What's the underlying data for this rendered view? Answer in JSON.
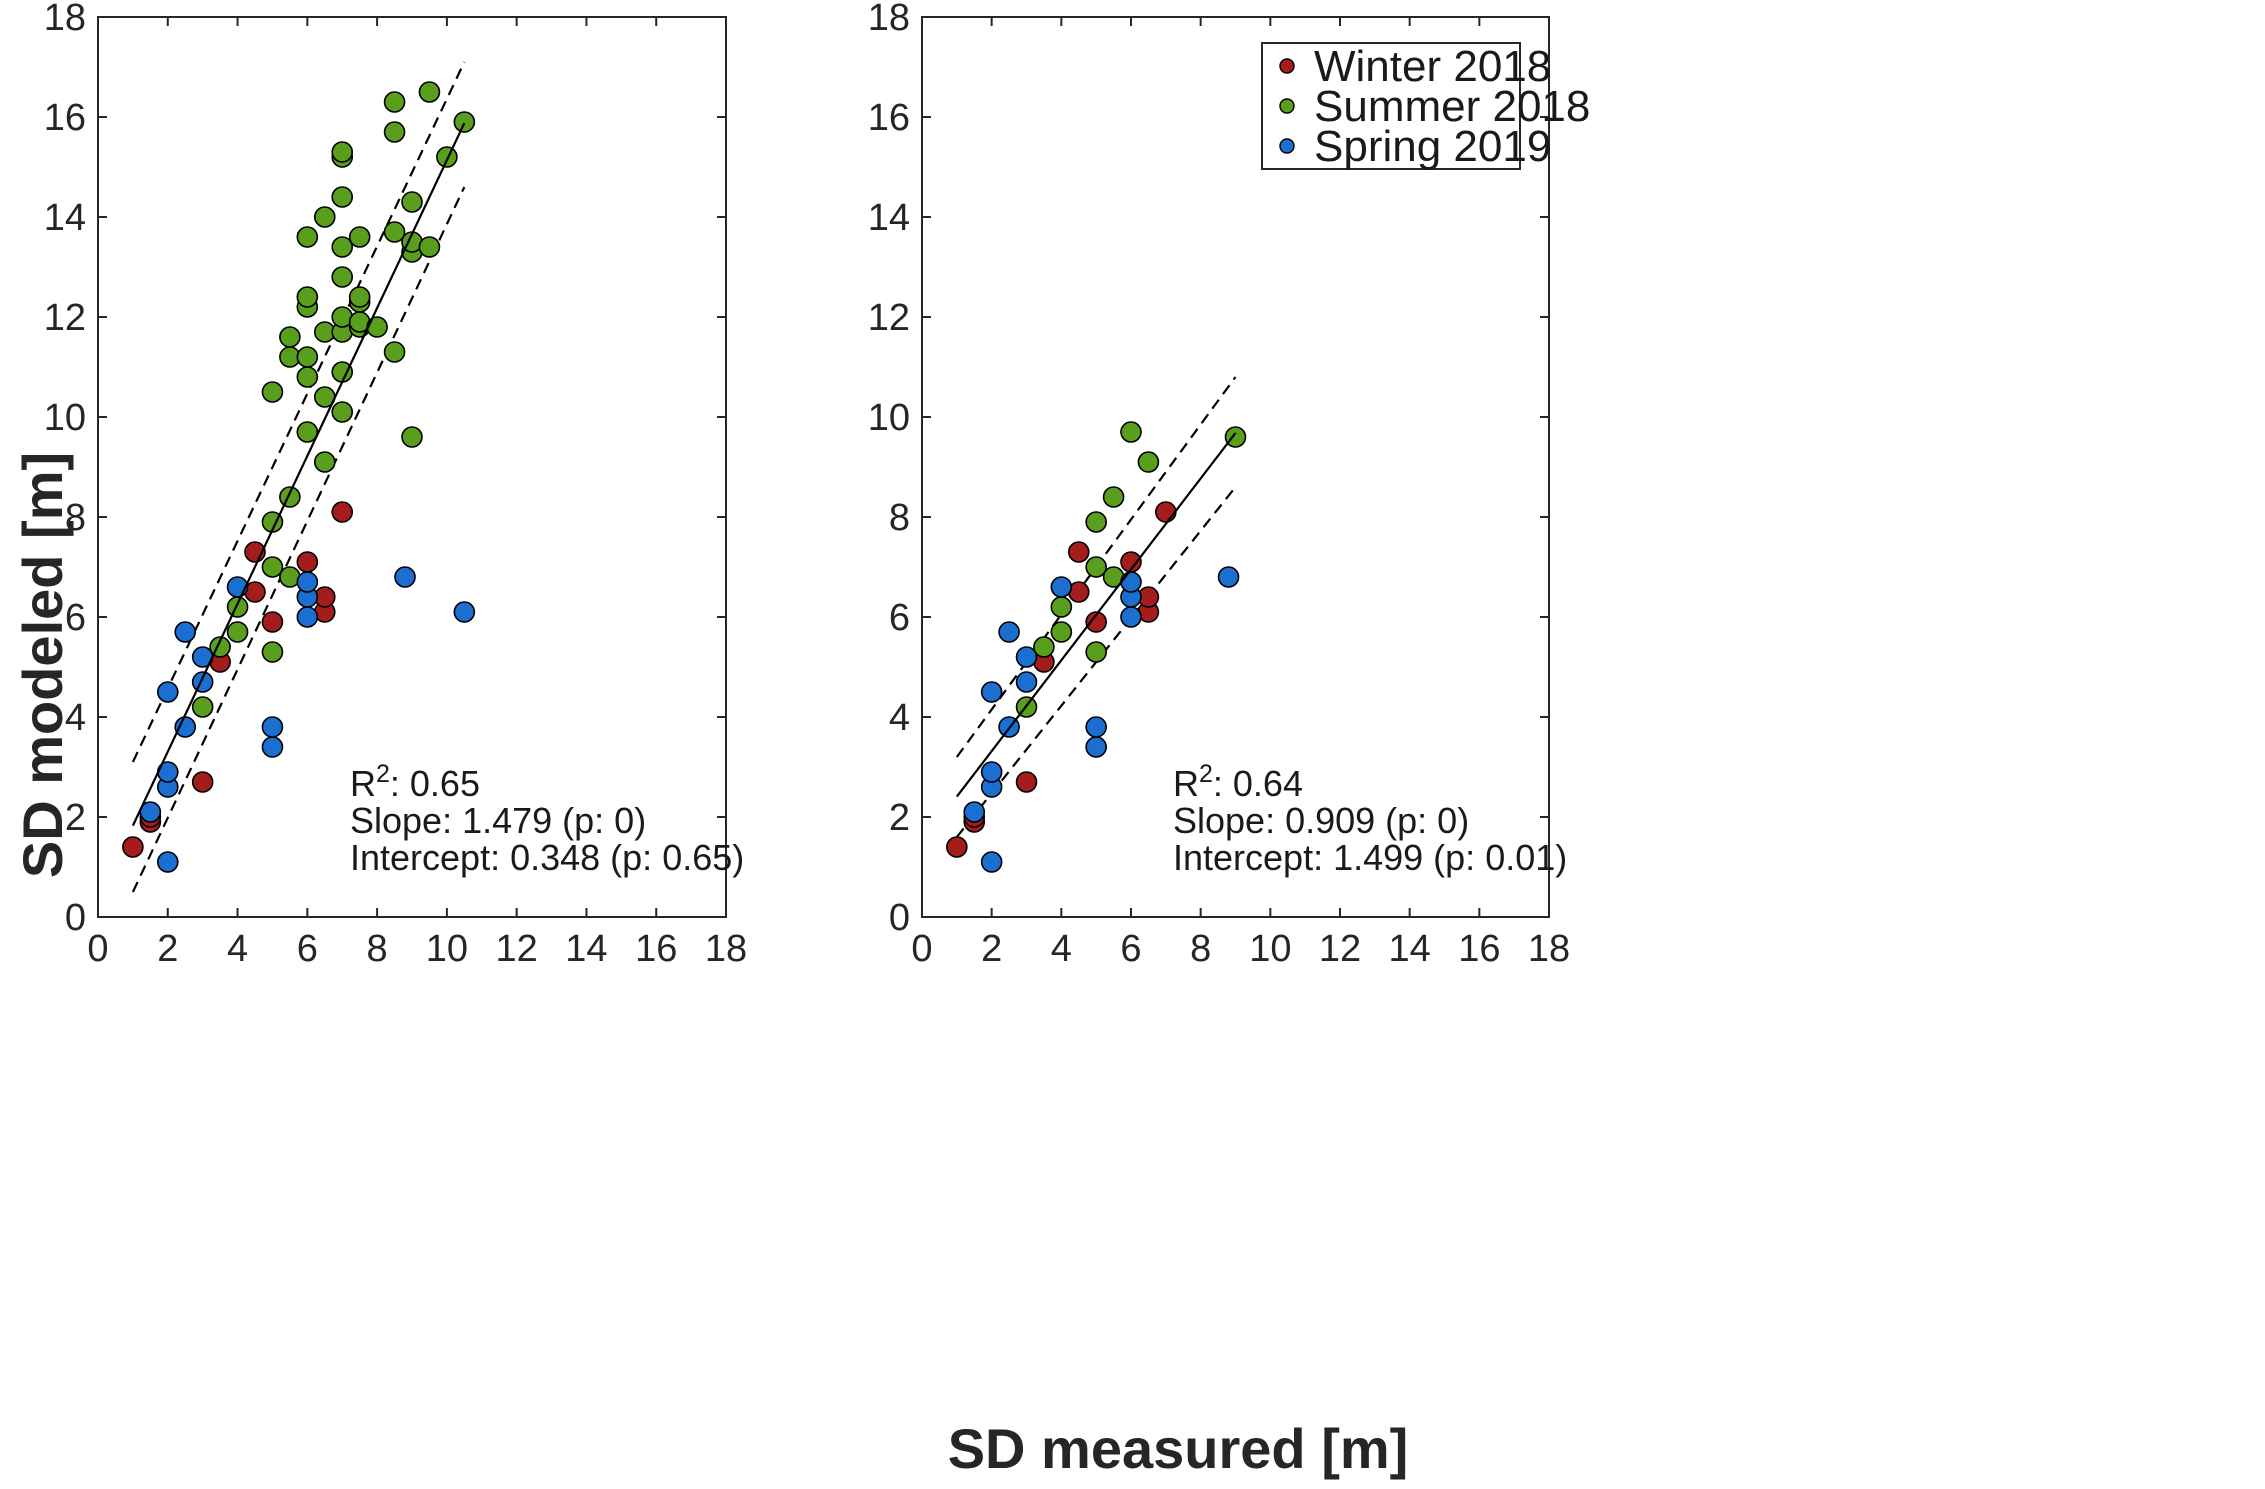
{
  "figure": {
    "xlabel": "SD measured [m]",
    "ylabel": "SD modeled [m]"
  },
  "legend": {
    "placement": "top-right",
    "entries": [
      {
        "name": "Winter 2018",
        "color": "#a51c1c"
      },
      {
        "name": "Summer 2018",
        "color": "#5a9e1e"
      },
      {
        "name": "Spring 2019",
        "color": "#1b6fd0"
      }
    ]
  },
  "chart_data": [
    {
      "type": "scatter",
      "panel": "left",
      "xlim": [
        0,
        18
      ],
      "ylim": [
        0,
        18
      ],
      "xticks": [
        0,
        2,
        4,
        6,
        8,
        10,
        12,
        14,
        16,
        18
      ],
      "yticks": [
        0,
        2,
        4,
        6,
        8,
        10,
        12,
        14,
        16,
        18
      ],
      "xlabel": "SD measured [m]",
      "ylabel": "SD modeled [m]",
      "stats": {
        "r2_label": "R",
        "r2_sup": "2",
        "r2_value": ": 0.65",
        "slope": "Slope: 1.479  (p: 0)",
        "intercept": "Intercept: 0.348  (p: 0.65)"
      },
      "fit": {
        "x_range": [
          1,
          10.5
        ],
        "slope": 1.479,
        "intercept": 0.348
      },
      "ci_lines": [
        {
          "x": [
            1,
            10.5
          ],
          "y": [
            3.1,
            17.1
          ]
        },
        {
          "x": [
            1,
            10.5
          ],
          "y": [
            0.5,
            14.6
          ]
        }
      ],
      "series": [
        {
          "name": "Winter 2018",
          "color": "#a51c1c",
          "points": [
            [
              1,
              1.4
            ],
            [
              1.5,
              1.9
            ],
            [
              1.5,
              2.0
            ],
            [
              3,
              2.7
            ],
            [
              3.5,
              5.1
            ],
            [
              4.5,
              6.5
            ],
            [
              4.5,
              7.3
            ],
            [
              5,
              5.9
            ],
            [
              6,
              7.1
            ],
            [
              6.5,
              6.1
            ],
            [
              6.5,
              6.4
            ],
            [
              7,
              8.1
            ]
          ]
        },
        {
          "name": "Summer 2018",
          "color": "#5a9e1e",
          "points": [
            [
              3,
              4.2
            ],
            [
              3.5,
              5.4
            ],
            [
              4,
              5.7
            ],
            [
              4,
              6.2
            ],
            [
              5,
              5.3
            ],
            [
              5,
              7.0
            ],
            [
              5,
              7.9
            ],
            [
              5,
              10.5
            ],
            [
              5.5,
              6.8
            ],
            [
              5.5,
              8.4
            ],
            [
              5.5,
              11.2
            ],
            [
              5.5,
              11.6
            ],
            [
              6,
              9.7
            ],
            [
              6,
              10.8
            ],
            [
              6,
              11.2
            ],
            [
              6,
              12.2
            ],
            [
              6,
              12.4
            ],
            [
              6,
              13.6
            ],
            [
              6.5,
              9.1
            ],
            [
              6.5,
              10.4
            ],
            [
              6.5,
              11.7
            ],
            [
              6.5,
              14.0
            ],
            [
              7,
              10.1
            ],
            [
              7,
              10.9
            ],
            [
              7,
              11.7
            ],
            [
              7,
              12.0
            ],
            [
              7,
              12.8
            ],
            [
              7,
              13.4
            ],
            [
              7,
              14.4
            ],
            [
              7,
              15.2
            ],
            [
              7,
              15.3
            ],
            [
              7.5,
              11.8
            ],
            [
              7.5,
              11.9
            ],
            [
              7.5,
              12.3
            ],
            [
              7.5,
              12.4
            ],
            [
              7.5,
              13.6
            ],
            [
              8,
              11.8
            ],
            [
              8.5,
              11.3
            ],
            [
              8.5,
              13.7
            ],
            [
              8.5,
              15.7
            ],
            [
              8.5,
              16.3
            ],
            [
              9,
              9.6
            ],
            [
              9,
              13.3
            ],
            [
              9,
              13.5
            ],
            [
              9,
              14.3
            ],
            [
              9.5,
              13.4
            ],
            [
              9.5,
              16.5
            ],
            [
              10,
              15.2
            ],
            [
              10.5,
              15.9
            ]
          ]
        },
        {
          "name": "Spring 2019",
          "color": "#1b6fd0",
          "points": [
            [
              1.5,
              2.1
            ],
            [
              2,
              1.1
            ],
            [
              2,
              2.6
            ],
            [
              2,
              2.9
            ],
            [
              2,
              4.5
            ],
            [
              2.5,
              3.8
            ],
            [
              2.5,
              5.7
            ],
            [
              3,
              4.7
            ],
            [
              3,
              5.2
            ],
            [
              4,
              6.6
            ],
            [
              5,
              3.4
            ],
            [
              5,
              3.8
            ],
            [
              6,
              6.0
            ],
            [
              6,
              6.4
            ],
            [
              6,
              6.7
            ],
            [
              8.8,
              6.8
            ],
            [
              10.5,
              6.1
            ]
          ]
        }
      ]
    },
    {
      "type": "scatter",
      "panel": "right",
      "xlim": [
        0,
        18
      ],
      "ylim": [
        0,
        18
      ],
      "xticks": [
        0,
        2,
        4,
        6,
        8,
        10,
        12,
        14,
        16,
        18
      ],
      "yticks": [
        0,
        2,
        4,
        6,
        8,
        10,
        12,
        14,
        16,
        18
      ],
      "xlabel": "SD measured [m]",
      "ylabel": "",
      "stats": {
        "r2_label": "R",
        "r2_sup": "2",
        "r2_value": ": 0.64",
        "slope": "Slope: 0.909  (p: 0)",
        "intercept": "Intercept: 1.499  (p: 0.01)"
      },
      "fit": {
        "x_range": [
          1,
          9
        ],
        "slope": 0.909,
        "intercept": 1.499
      },
      "ci_lines": [
        {
          "x": [
            1,
            9
          ],
          "y": [
            3.2,
            10.8
          ]
        },
        {
          "x": [
            1,
            9
          ],
          "y": [
            1.6,
            8.6
          ]
        }
      ],
      "series": [
        {
          "name": "Winter 2018",
          "color": "#a51c1c",
          "points": [
            [
              1,
              1.4
            ],
            [
              1.5,
              1.9
            ],
            [
              1.5,
              2.0
            ],
            [
              3,
              2.7
            ],
            [
              3.5,
              5.1
            ],
            [
              4.5,
              6.5
            ],
            [
              4.5,
              7.3
            ],
            [
              5,
              5.9
            ],
            [
              6,
              7.1
            ],
            [
              6.5,
              6.1
            ],
            [
              6.5,
              6.4
            ],
            [
              7,
              8.1
            ]
          ]
        },
        {
          "name": "Summer 2018",
          "color": "#5a9e1e",
          "points": [
            [
              3,
              4.2
            ],
            [
              3.5,
              5.4
            ],
            [
              4,
              5.7
            ],
            [
              4,
              6.2
            ],
            [
              5,
              5.3
            ],
            [
              5,
              7.0
            ],
            [
              5,
              7.9
            ],
            [
              5.5,
              6.8
            ],
            [
              5.5,
              8.4
            ],
            [
              6,
              9.7
            ],
            [
              6.5,
              9.1
            ],
            [
              9,
              9.6
            ]
          ]
        },
        {
          "name": "Spring 2019",
          "color": "#1b6fd0",
          "points": [
            [
              1.5,
              2.1
            ],
            [
              2,
              1.1
            ],
            [
              2,
              2.6
            ],
            [
              2,
              2.9
            ],
            [
              2,
              4.5
            ],
            [
              2.5,
              3.8
            ],
            [
              2.5,
              5.7
            ],
            [
              3,
              4.7
            ],
            [
              3,
              5.2
            ],
            [
              4,
              6.6
            ],
            [
              5,
              3.4
            ],
            [
              5,
              3.8
            ],
            [
              6,
              6.0
            ],
            [
              6,
              6.4
            ],
            [
              6,
              6.7
            ],
            [
              8.8,
              6.8
            ]
          ]
        }
      ]
    }
  ]
}
